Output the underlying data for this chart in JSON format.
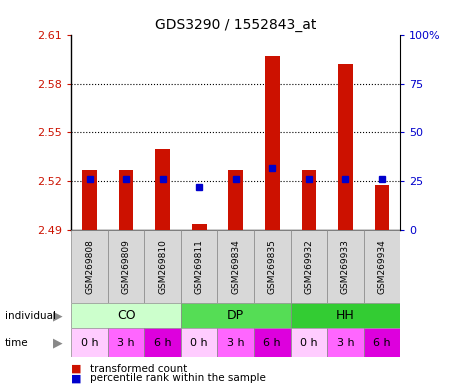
{
  "title": "GDS3290 / 1552843_at",
  "samples": [
    "GSM269808",
    "GSM269809",
    "GSM269810",
    "GSM269811",
    "GSM269834",
    "GSM269835",
    "GSM269932",
    "GSM269933",
    "GSM269934"
  ],
  "red_values": [
    2.527,
    2.527,
    2.54,
    2.494,
    2.527,
    2.597,
    2.527,
    2.592,
    2.518
  ],
  "blue_values": [
    26,
    26,
    26,
    22,
    26,
    32,
    26,
    26,
    26
  ],
  "ymin": 2.49,
  "ymax": 2.61,
  "yticks": [
    2.49,
    2.52,
    2.55,
    2.58,
    2.61
  ],
  "right_yticks": [
    0,
    25,
    50,
    75,
    100
  ],
  "individual_groups": [
    {
      "label": "CO",
      "start": 0,
      "end": 3,
      "color": "#ccffcc"
    },
    {
      "label": "DP",
      "start": 3,
      "end": 6,
      "color": "#55dd55"
    },
    {
      "label": "HH",
      "start": 6,
      "end": 9,
      "color": "#33cc33"
    }
  ],
  "time_labels": [
    "0 h",
    "3 h",
    "6 h",
    "0 h",
    "3 h",
    "6 h",
    "0 h",
    "3 h",
    "6 h"
  ],
  "time_color_map": {
    "0 h": "#ffccff",
    "3 h": "#ff66ff",
    "6 h": "#dd00dd"
  },
  "bar_color": "#cc1100",
  "dot_color": "#0000cc",
  "sample_bg": "#d8d8d8",
  "plot_bg": "#ffffff",
  "label_color_red": "#cc1100",
  "label_color_blue": "#0000cc",
  "legend_red": "transformed count",
  "legend_blue": "percentile rank within the sample"
}
